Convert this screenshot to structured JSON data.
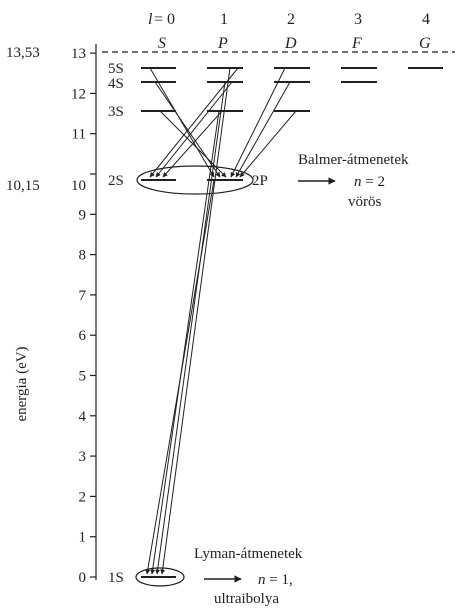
{
  "header": {
    "l_label": "l",
    "l_eq": " = 0",
    "columns": [
      {
        "number": "1",
        "letter": "P"
      },
      {
        "number": "2",
        "letter": "D"
      },
      {
        "number": "3",
        "letter": "F"
      },
      {
        "number": "4",
        "letter": "G"
      }
    ],
    "first_letter": "S"
  },
  "axis": {
    "title": "energia (eV)",
    "ticks": [
      "0",
      "1",
      "2",
      "3",
      "4",
      "5",
      "6",
      "7",
      "8",
      "9",
      "10",
      "11",
      "12",
      "13"
    ],
    "special_top": "13,53",
    "special_mid": "10,15"
  },
  "levels": {
    "s5": "5S",
    "s4": "4S",
    "s3": "3S",
    "s2": "2S",
    "p2": "2P",
    "s1": "1S"
  },
  "annotations": {
    "balmer_title": "Balmer-átmenetek",
    "balmer_n": "n",
    "balmer_n_val": " = 2",
    "balmer_color": "vörös",
    "lyman_title": "Lyman-átmenetek",
    "lyman_n": "n",
    "lyman_n_val": " = 1,",
    "lyman_color": "ultraibolya"
  },
  "colors": {
    "ink": "#231f20"
  }
}
